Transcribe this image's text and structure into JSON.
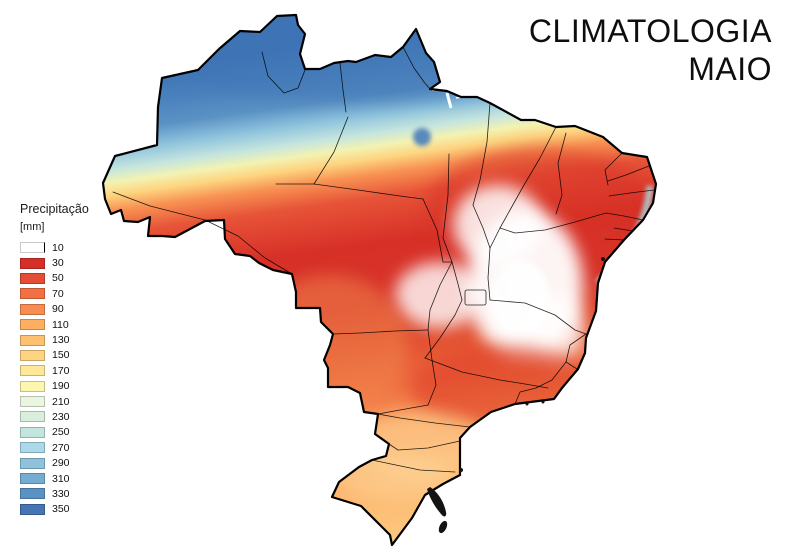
{
  "title": {
    "line1": "CLIMATOLOGIA",
    "line2": "MAIO"
  },
  "legend": {
    "title": "Precipitação",
    "unit": "[mm]",
    "entries": [
      {
        "value": "10",
        "color": "#ffffff"
      },
      {
        "value": "30",
        "color": "#d62f27"
      },
      {
        "value": "50",
        "color": "#e34d33"
      },
      {
        "value": "70",
        "color": "#f37043"
      },
      {
        "value": "90",
        "color": "#f88c51"
      },
      {
        "value": "110",
        "color": "#fdae61"
      },
      {
        "value": "130",
        "color": "#fdc171"
      },
      {
        "value": "150",
        "color": "#fed482"
      },
      {
        "value": "170",
        "color": "#fee797"
      },
      {
        "value": "190",
        "color": "#fdf6af"
      },
      {
        "value": "210",
        "color": "#eaf6e0"
      },
      {
        "value": "230",
        "color": "#d9efdb"
      },
      {
        "value": "250",
        "color": "#c2e5dd"
      },
      {
        "value": "270",
        "color": "#abd9e9"
      },
      {
        "value": "290",
        "color": "#8fc3dd"
      },
      {
        "value": "310",
        "color": "#74add1"
      },
      {
        "value": "330",
        "color": "#5b92c4"
      },
      {
        "value": "350",
        "color": "#4575b4"
      }
    ]
  },
  "map": {
    "country": "Brasil",
    "variable": "precipitação (climatologia de maio)",
    "zones": [
      {
        "region": "norte (Amazônia, Roraima, Amapá)",
        "approx_mm": "290-350"
      },
      {
        "region": "faixa de transição centro-norte",
        "approx_mm": "150-250"
      },
      {
        "region": "centro-oeste / interior do sudeste",
        "approx_mm": "30-90"
      },
      {
        "region": "oeste da Bahia / norte de Minas Gerais",
        "approx_mm": "< 10"
      },
      {
        "region": "litoral leste do Nordeste",
        "approx_mm": "190-270"
      },
      {
        "region": "sul (PR, SC, RS)",
        "approx_mm": "90-150"
      }
    ]
  }
}
